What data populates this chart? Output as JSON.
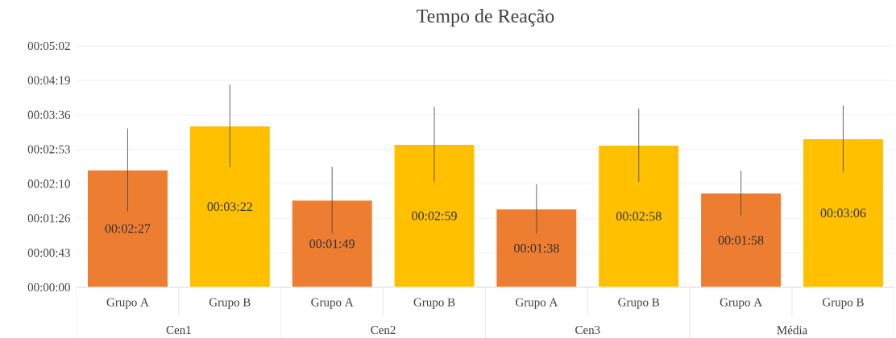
{
  "chart_data": {
    "type": "bar",
    "title": "Tempo de Reação",
    "categories": [
      "Grupo A",
      "Grupo B",
      "Grupo A",
      "Grupo B",
      "Grupo A",
      "Grupo B",
      "Grupo A",
      "Grupo B"
    ],
    "values": [
      147,
      202,
      109,
      179,
      98,
      178,
      118,
      186
    ],
    "colors": [
      "#ed7d31",
      "#ffc000",
      "#ed7d31",
      "#ffc000",
      "#ed7d31",
      "#ffc000",
      "#ed7d31",
      "#ffc000"
    ],
    "errors": [
      52,
      52,
      42,
      47,
      31,
      46,
      28,
      42
    ],
    "value_labels": [
      "00:02:27",
      "00:03:22",
      "00:01:49",
      "00:02:59",
      "00:01:38",
      "00:02:58",
      "00:01:58",
      "00:03:06"
    ],
    "annotations": [
      "Cen1",
      "Cen2",
      "Cen3",
      "Média"
    ],
    "ylim": [
      0,
      302.4
    ],
    "yticks": [
      {
        "value": 0,
        "label": "00:00:00"
      },
      {
        "value": 43.2,
        "label": "00:00:43"
      },
      {
        "value": 86.4,
        "label": "00:01:26"
      },
      {
        "value": 129.6,
        "label": "00:02:10"
      },
      {
        "value": 172.8,
        "label": "00:02:53"
      },
      {
        "value": 216,
        "label": "00:03:36"
      },
      {
        "value": 259.2,
        "label": "00:04:19"
      },
      {
        "value": 302.4,
        "label": "00:05:02"
      }
    ],
    "grid": "y"
  }
}
